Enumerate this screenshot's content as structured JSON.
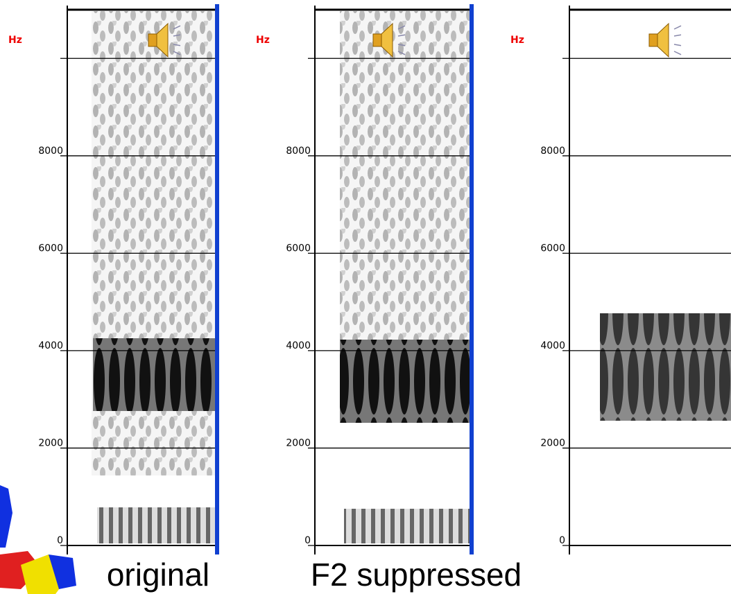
{
  "panels": [
    {
      "unit": "Hz",
      "ylim": [
        0,
        11000
      ],
      "yticks": [
        0,
        2000,
        4000,
        6000,
        8000,
        {
          "value": 10000,
          "label": null
        }
      ]
    },
    {
      "unit": "Hz",
      "ylim": [
        0,
        11000
      ],
      "yticks": [
        0,
        2000,
        4000,
        6000,
        8000,
        {
          "value": 10000,
          "label": null
        }
      ]
    },
    {
      "unit": "Hz",
      "ylim": [
        0,
        11000
      ],
      "yticks": [
        0,
        2000,
        4000,
        6000,
        8000,
        {
          "value": 10000,
          "label": null
        }
      ]
    }
  ],
  "captions": [
    "original",
    "F2 suppressed"
  ]
}
